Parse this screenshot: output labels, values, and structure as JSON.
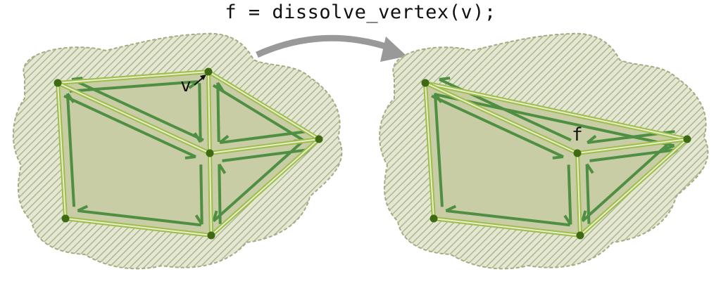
{
  "caption": "f = dissolve_vertex(v);",
  "colors": {
    "background": "#ffffff",
    "hatch_fill": "#e4e8d2",
    "hatch_line": "#aeb690",
    "region_outline": "#a4ac84",
    "face_fill": "#c9cda5",
    "edge_outer": "#9ebd4b",
    "edge_inner": "#e8eecb",
    "halfedge": "#4f8f43",
    "vertex": "#3d6a13",
    "arrow": "#999999",
    "label": "#111111"
  },
  "before": {
    "vertex_label": "v",
    "vertex_label_icon": "pointer-arrow-icon"
  },
  "after": {
    "face_label": "f"
  }
}
